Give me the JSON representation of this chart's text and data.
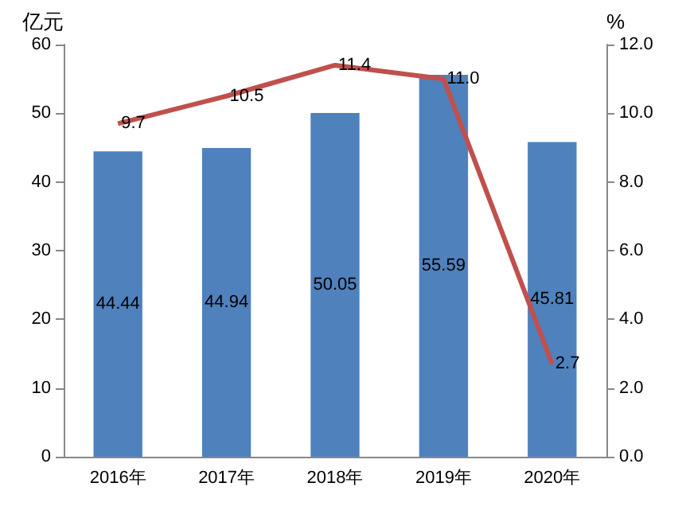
{
  "chart_data": {
    "type": "bar",
    "ylabel": "亿元",
    "y2label": "%",
    "categories": [
      "2016年",
      "2017年",
      "2018年",
      "2019年",
      "2020年"
    ],
    "series": [
      {
        "color": "#4f81bd",
        "values": [
          44.44,
          44.94,
          50.05,
          55.59,
          45.81
        ],
        "value_labels": [
          "44.44",
          "44.94",
          "50.05",
          "55.59",
          "45.81"
        ]
      },
      {
        "type": "line",
        "axis": "y2",
        "color": "#c0504d",
        "values": [
          9.7,
          10.5,
          11.4,
          11.0,
          2.7
        ],
        "value_labels": [
          "9.7",
          "10.5",
          "11.4",
          "11.0",
          "2.7"
        ]
      }
    ],
    "ylim": [
      0,
      60
    ],
    "yticks": [
      0,
      10,
      20,
      30,
      40,
      50,
      60
    ],
    "y2lim": [
      0,
      12
    ],
    "y2ticks": [
      {
        "value": 0,
        "label": "0.0"
      },
      {
        "value": 2,
        "label": "2.0"
      },
      {
        "value": 4,
        "label": "4.0"
      },
      {
        "value": 6,
        "label": "6.0"
      },
      {
        "value": 8,
        "label": "8.0"
      },
      {
        "value": 10,
        "label": "10.0"
      },
      {
        "value": 12,
        "label": "12.0"
      }
    ],
    "grid": false,
    "marker": "none",
    "line_style": "solid"
  }
}
